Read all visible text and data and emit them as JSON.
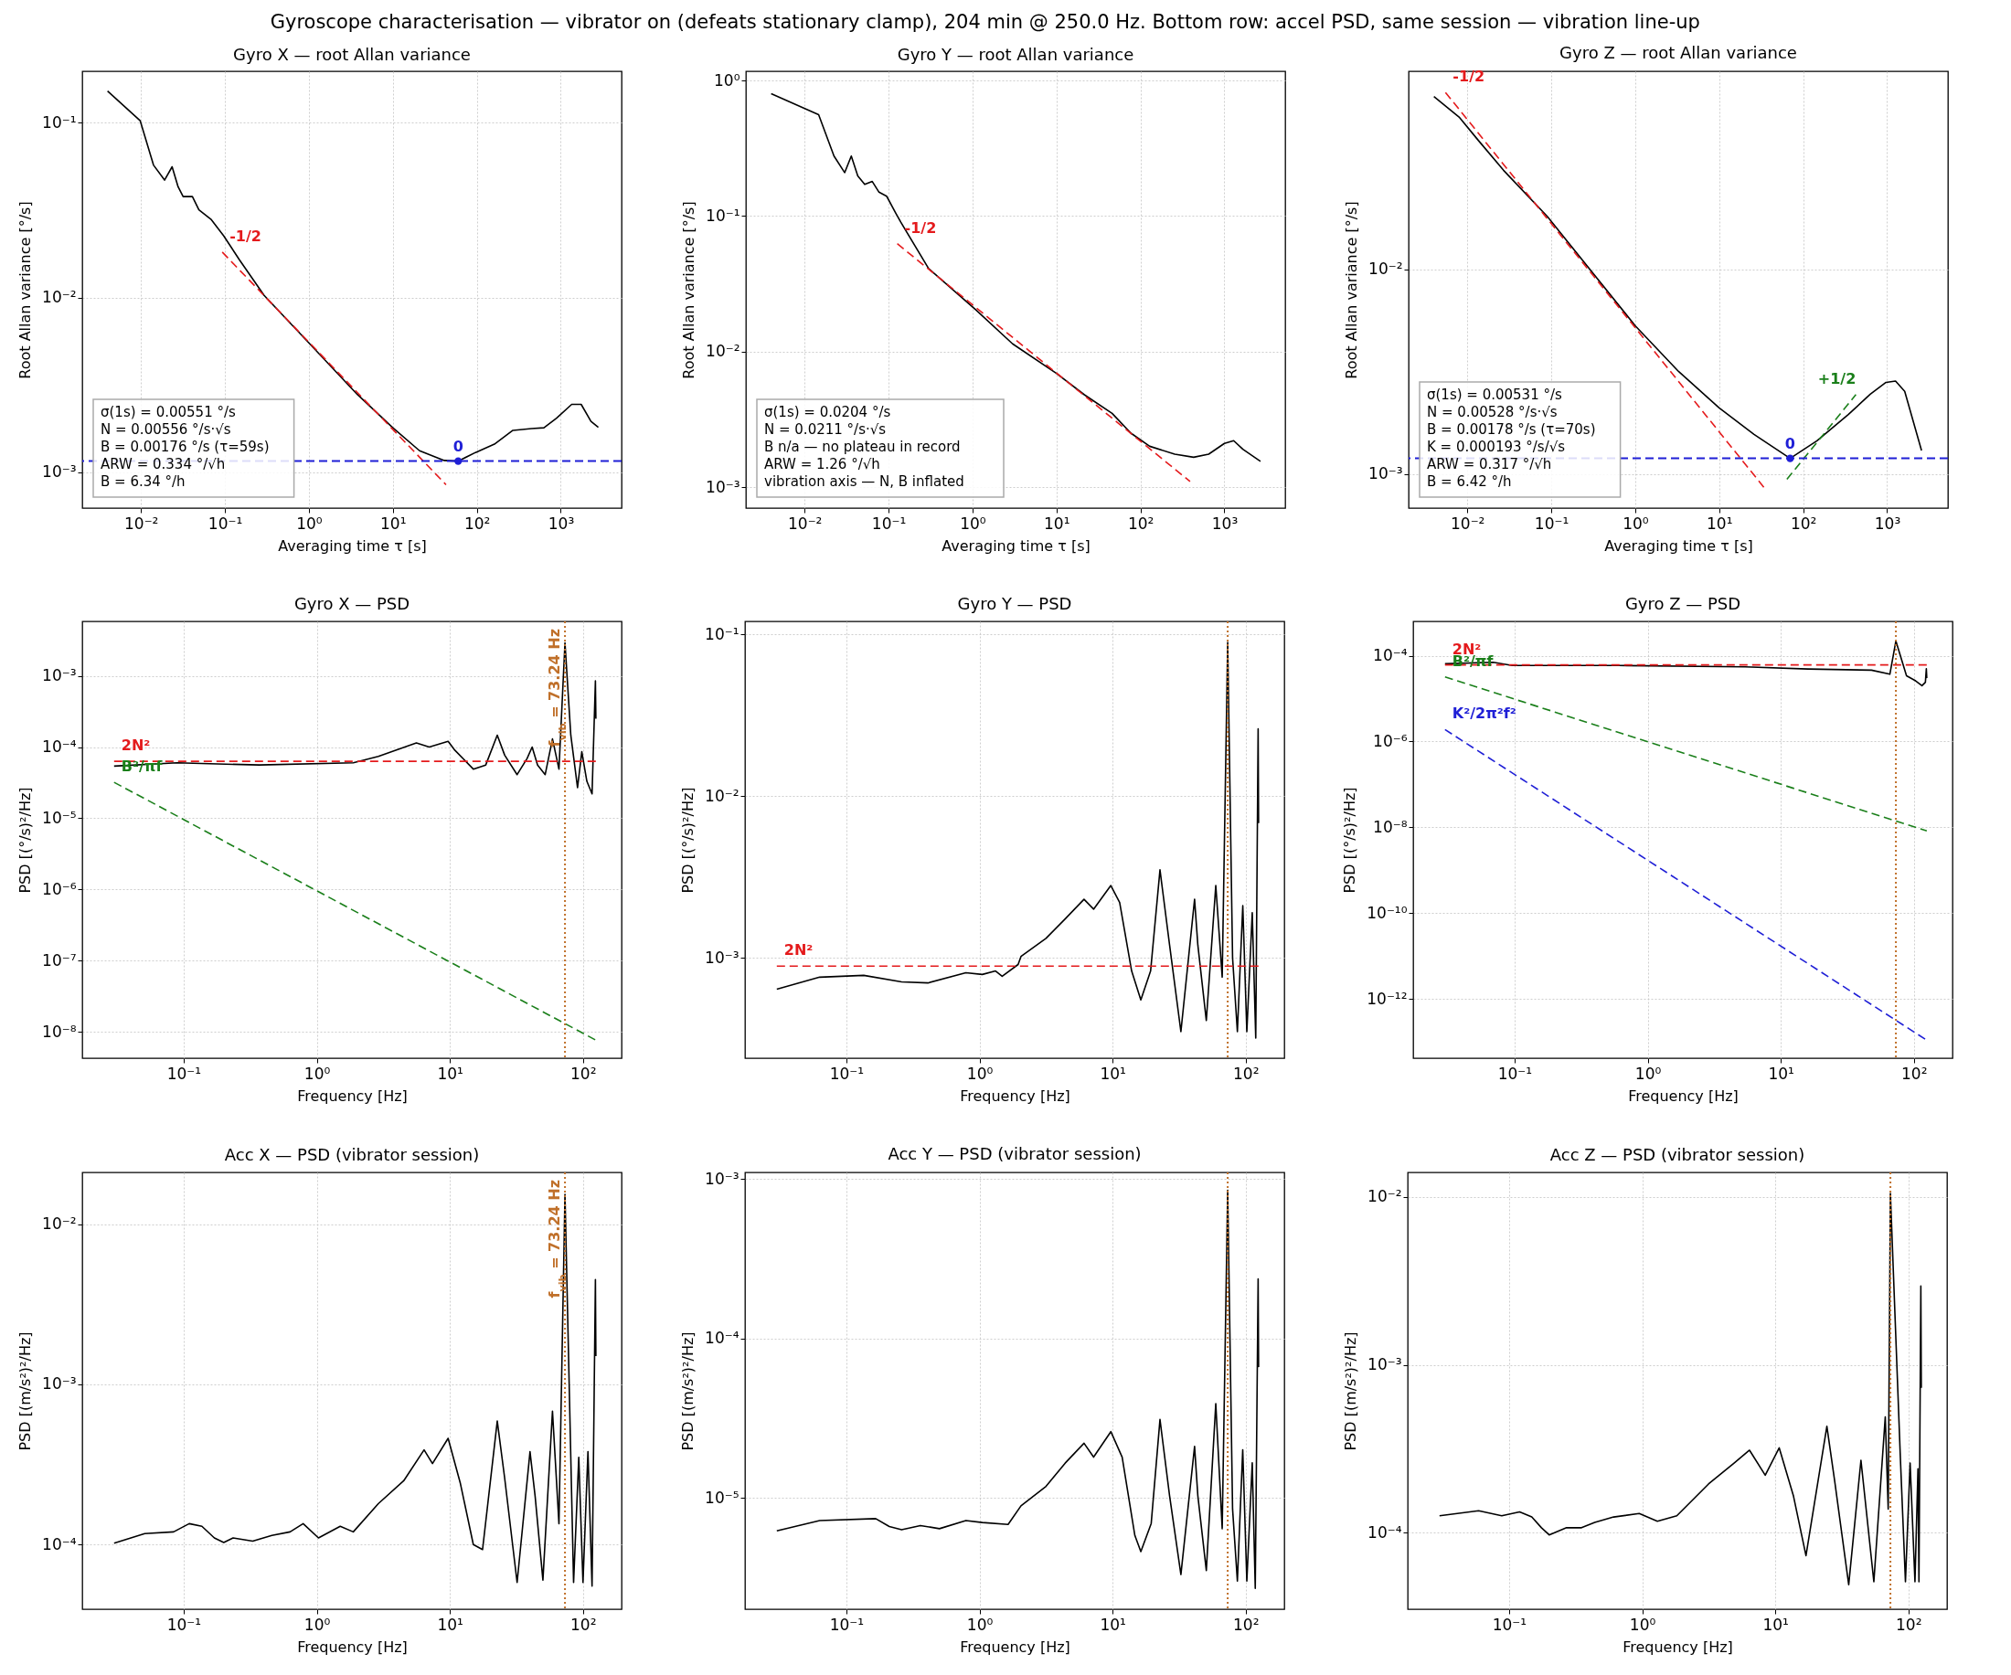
{
  "chart_data": [
    {
      "type": "other",
      "title": "Gyroscope characterisation — vibrator on (defeats stationary clamp), 204 min @ 250.0 Hz. Bottom row: accel PSD, same session — vibration line-up"
    },
    {
      "type": "line",
      "title": "Gyro X — root Allan variance",
      "xlabel": "Averaging time τ [s]",
      "ylabel": "Root Allan variance [°/s]",
      "log": "xy",
      "grid": true,
      "xlim": [
        0.002,
        5300
      ],
      "ylim": [
        0.000625,
        0.197
      ],
      "xticks": [
        {
          "value": 0.01,
          "label": "10⁻²"
        },
        {
          "value": 0.1,
          "label": "10⁻¹"
        },
        {
          "value": 1,
          "label": "10⁰"
        },
        {
          "value": 10,
          "label": "10¹"
        },
        {
          "value": 100,
          "label": "10²"
        },
        {
          "value": 1000,
          "label": "10³"
        }
      ],
      "yticks": [
        {
          "value": 0.001,
          "label": "10⁻³"
        },
        {
          "value": 0.01,
          "label": "10⁻²"
        },
        {
          "value": 0.1,
          "label": "10⁻¹"
        }
      ],
      "series": [
        {
          "color": "#000000",
          "x": [
            0.004,
            0.0098,
            0.0141,
            0.0191,
            0.0235,
            0.0277,
            0.0318,
            0.041,
            0.049,
            0.069,
            0.097,
            0.148,
            0.293,
            1,
            3.78,
            10,
            20.8,
            41,
            60,
            96.6,
            162,
            269,
            450,
            630,
            890,
            1350,
            1750,
            2290,
            2800
          ],
          "values": [
            0.152,
            0.1026,
            0.0573,
            0.047,
            0.056,
            0.043,
            0.0378,
            0.0378,
            0.0318,
            0.0279,
            0.0225,
            0.0165,
            0.0103,
            0.0055,
            0.00279,
            0.0018,
            0.00133,
            0.00117,
            0.00116,
            0.0013,
            0.00145,
            0.00174,
            0.00178,
            0.0018,
            0.00204,
            0.00245,
            0.00245,
            0.00196,
            0.00181
          ]
        },
        {
          "name": "-1/2",
          "color": "#e41a1c",
          "line_style": "dashed",
          "x": [
            0.093,
            43
          ],
          "values": [
            0.0182,
            0.00085
          ]
        },
        {
          "name": "0",
          "type": "scatter",
          "marker": "circle",
          "color": "#1f1fd6",
          "x": [
            60
          ],
          "values": [
            0.00116
          ]
        }
      ],
      "ref_lines": [
        {
          "axis": "y",
          "value": 0.00116,
          "color": "#1f1fd6",
          "line_style": "dashed"
        }
      ],
      "annotations": [
        "σ(1s) = 0.00551 °/s",
        "N = 0.00556 °/s·√s",
        "B = 0.00176 °/s  (τ=59s)",
        "ARW = 0.334 °/√h",
        "B = 6.34 °/h"
      ]
    },
    {
      "type": "line",
      "title": "Gyro Y — root Allan variance",
      "xlabel": "Averaging time τ [s]",
      "ylabel": "Root Allan variance [°/s]",
      "log": "xy",
      "grid": true,
      "xlim": [
        0.002,
        5300
      ],
      "ylim": [
        0.0007,
        1.17
      ],
      "xticks": [
        {
          "value": 0.01,
          "label": "10⁻²"
        },
        {
          "value": 0.1,
          "label": "10⁻¹"
        },
        {
          "value": 1,
          "label": "10⁰"
        },
        {
          "value": 10,
          "label": "10¹"
        },
        {
          "value": 100,
          "label": "10²"
        },
        {
          "value": 1000,
          "label": "10³"
        }
      ],
      "yticks": [
        {
          "value": 0.001,
          "label": "10⁻³"
        },
        {
          "value": 0.01,
          "label": "10⁻²"
        },
        {
          "value": 0.1,
          "label": "10⁻¹"
        },
        {
          "value": 1,
          "label": "10⁰"
        }
      ],
      "series": [
        {
          "color": "#000000",
          "x": [
            0.004,
            0.0147,
            0.0224,
            0.03,
            0.036,
            0.043,
            0.052,
            0.064,
            0.077,
            0.095,
            0.122,
            0.14,
            0.3,
            1.09,
            3,
            10,
            21.5,
            46,
            77,
            129,
            256,
            430,
            650,
            1000,
            1290,
            1660,
            2690
          ],
          "values": [
            0.8,
            0.56,
            0.277,
            0.209,
            0.277,
            0.198,
            0.171,
            0.18,
            0.15,
            0.14,
            0.105,
            0.09,
            0.041,
            0.0204,
            0.0114,
            0.0069,
            0.0048,
            0.0035,
            0.0025,
            0.002,
            0.00175,
            0.00166,
            0.00175,
            0.0021,
            0.0022,
            0.0019,
            0.00155
          ]
        },
        {
          "name": "-1/2",
          "color": "#e41a1c",
          "line_style": "dashed",
          "x": [
            0.127,
            390
          ],
          "values": [
            0.0625,
            0.0011
          ]
        }
      ],
      "annotations": [
        "σ(1s) = 0.0204 °/s",
        "N = 0.0211 °/s·√s",
        "B n/a — no plateau in record",
        "ARW = 1.26 °/√h",
        "vibration axis — N, B inflated"
      ]
    },
    {
      "type": "line",
      "title": "Gyro Z — root Allan variance",
      "xlabel": "Averaging time τ [s]",
      "ylabel": "Root Allan variance [°/s]",
      "log": "xy",
      "grid": true,
      "xlim": [
        0.002,
        5300
      ],
      "ylim": [
        0.00068,
        0.093
      ],
      "xticks": [
        {
          "value": 0.01,
          "label": "10⁻²"
        },
        {
          "value": 0.1,
          "label": "10⁻¹"
        },
        {
          "value": 1,
          "label": "10⁰"
        },
        {
          "value": 10,
          "label": "10¹"
        },
        {
          "value": 100,
          "label": "10²"
        },
        {
          "value": 1000,
          "label": "10³"
        }
      ],
      "yticks": [
        {
          "value": 0.001,
          "label": "10⁻³"
        },
        {
          "value": 0.01,
          "label": "10⁻²"
        }
      ],
      "series": [
        {
          "color": "#000000",
          "x": [
            0.004,
            0.0081,
            0.0136,
            0.027,
            0.09,
            1,
            3.3,
            10,
            26,
            70,
            146,
            345,
            630,
            970,
            1260,
            1620,
            2570
          ],
          "values": [
            0.07,
            0.0552,
            0.0426,
            0.0305,
            0.0181,
            0.0053,
            0.00316,
            0.0021,
            0.00156,
            0.00119,
            0.00145,
            0.00195,
            0.00245,
            0.0028,
            0.00284,
            0.00253,
            0.0013
          ]
        },
        {
          "name": "-1/2",
          "color": "#e41a1c",
          "line_style": "dashed",
          "x": [
            0.0055,
            34
          ],
          "values": [
            0.0733,
            0.00086
          ]
        },
        {
          "name": "+1/2",
          "color": "#1a7f1a",
          "line_style": "dashed",
          "x": [
            64,
            425
          ],
          "values": [
            0.00094,
            0.00244
          ]
        },
        {
          "name": "0",
          "type": "scatter",
          "marker": "circle",
          "color": "#1f1fd6",
          "x": [
            70
          ],
          "values": [
            0.00119
          ]
        }
      ],
      "ref_lines": [
        {
          "axis": "y",
          "value": 0.00119,
          "color": "#1f1fd6",
          "line_style": "dashed"
        }
      ],
      "annotations": [
        "σ(1s) = 0.00531 °/s",
        "N = 0.00528 °/s·√s",
        "B = 0.00178 °/s  (τ=70s)",
        "K = 0.000193 °/s/√s",
        "ARW = 0.317 °/√h",
        "B = 6.42 °/h"
      ]
    },
    {
      "type": "line",
      "title": "Gyro X — PSD",
      "xlabel": "Frequency [Hz]",
      "ylabel": "PSD [(°/s)²/Hz]",
      "log": "xy",
      "grid": true,
      "xlim": [
        0.0173,
        195
      ],
      "ylim": [
        4.3e-09,
        0.0058
      ],
      "xticks": [
        {
          "value": 0.1,
          "label": "10⁻¹"
        },
        {
          "value": 1,
          "label": "10⁰"
        },
        {
          "value": 10,
          "label": "10¹"
        },
        {
          "value": 100,
          "label": "10²"
        }
      ],
      "yticks": [
        {
          "value": 1e-08,
          "label": "10⁻⁸"
        },
        {
          "value": 1e-07,
          "label": "10⁻⁷"
        },
        {
          "value": 1e-06,
          "label": "10⁻⁶"
        },
        {
          "value": 1e-05,
          "label": "10⁻⁵"
        },
        {
          "value": 0.0001,
          "label": "10⁻⁴"
        },
        {
          "value": 0.001,
          "label": "10⁻³"
        }
      ],
      "series": [
        {
          "color": "#000000",
          "x": [
            0.03,
            0.089,
            0.37,
            1.88,
            2.9,
            5.6,
            7,
            9.7,
            10.8,
            15,
            18.6,
            22.7,
            25.8,
            32,
            38,
            41.5,
            45.6,
            52,
            59,
            66,
            73.24,
            81,
            91,
            98,
            107,
            117,
            124,
            125
          ],
          "values": [
            5.4e-05,
            6e-05,
            5.6e-05,
            6e-05,
            7.4e-05,
            0.000114,
            0.0001,
            0.00012,
            9.2e-05,
            4.9e-05,
            5.6e-05,
            0.000147,
            7.7e-05,
            4.1e-05,
            6.9e-05,
            0.0001,
            5.6e-05,
            4.1e-05,
            0.00013,
            4.9e-05,
            0.0029,
            0.000147,
            2.7e-05,
            8.6e-05,
            3.3e-05,
            2.2e-05,
            0.00085,
            0.00025
          ]
        },
        {
          "name": "2N²",
          "color": "#e41a1c",
          "line_style": "dashed",
          "x": [
            0.03,
            125
          ],
          "values": [
            6.3e-05,
            6.3e-05
          ]
        },
        {
          "name": "B²/πf",
          "color": "#1a7f1a",
          "line_style": "dashed",
          "x": [
            0.03,
            125
          ],
          "values": [
            3.2e-05,
            7.7e-09
          ]
        }
      ],
      "ref_lines": [
        {
          "axis": "x",
          "value": 73.24,
          "color": "#c0702a",
          "line_style": "dotted",
          "label": "f$_{vib}$ = 73.24 Hz"
        }
      ]
    },
    {
      "type": "line",
      "title": "Gyro Y — PSD",
      "xlabel": "Frequency [Hz]",
      "ylabel": "PSD [(°/s)²/Hz]",
      "log": "xy",
      "grid": true,
      "xlim": [
        0.0173,
        195
      ],
      "ylim": [
        0.00024,
        0.12
      ],
      "xticks": [
        {
          "value": 0.1,
          "label": "10⁻¹"
        },
        {
          "value": 1,
          "label": "10⁰"
        },
        {
          "value": 10,
          "label": "10¹"
        },
        {
          "value": 100,
          "label": "10²"
        }
      ],
      "yticks": [
        {
          "value": 0.001,
          "label": "10⁻³"
        },
        {
          "value": 0.01,
          "label": "10⁻²"
        },
        {
          "value": 0.1,
          "label": "10⁻¹"
        }
      ],
      "series": [
        {
          "color": "#000000",
          "x": [
            0.03,
            0.063,
            0.135,
            0.26,
            0.41,
            0.79,
            1.05,
            1.32,
            1.48,
            1.95,
            2.05,
            3.16,
            4.4,
            6.1,
            7.2,
            9.7,
            11.3,
            13.9,
            16.3,
            19.3,
            22.7,
            26.8,
            32.6,
            41.3,
            43.7,
            50.6,
            59.6,
            66.6,
            73.24,
            79.7,
            86.6,
            95.1,
            102,
            112,
            119,
            124,
            125
          ],
          "values": [
            0.00064,
            0.00076,
            0.00078,
            0.00071,
            0.0007,
            0.00081,
            0.00079,
            0.00083,
            0.00077,
            0.00091,
            0.00102,
            0.00132,
            0.00174,
            0.0023,
            0.002,
            0.0028,
            0.0022,
            0.00083,
            0.00055,
            0.00083,
            0.0035,
            0.0012,
            0.00035,
            0.0023,
            0.0012,
            0.00041,
            0.0028,
            0.00076,
            0.089,
            0.001,
            0.00035,
            0.0021,
            0.00035,
            0.0019,
            0.00032,
            0.026,
            0.0068
          ]
        },
        {
          "name": "2N²",
          "color": "#e41a1c",
          "line_style": "dashed",
          "x": [
            0.03,
            125
          ],
          "values": [
            0.00089,
            0.00089
          ]
        }
      ],
      "ref_lines": [
        {
          "axis": "x",
          "value": 73.24,
          "color": "#c0702a",
          "line_style": "dotted"
        }
      ]
    },
    {
      "type": "line",
      "title": "Gyro Z — PSD",
      "xlabel": "Frequency [Hz]",
      "ylabel": "PSD [(°/s)²/Hz]",
      "log": "xy",
      "grid": true,
      "xlim": [
        0.0173,
        195
      ],
      "ylim": [
        4.2e-14,
        0.00063
      ],
      "xticks": [
        {
          "value": 0.1,
          "label": "10⁻¹"
        },
        {
          "value": 1,
          "label": "10⁰"
        },
        {
          "value": 10,
          "label": "10¹"
        },
        {
          "value": 100,
          "label": "10²"
        }
      ],
      "yticks": [
        {
          "value": 1e-12,
          "label": "10⁻¹²"
        },
        {
          "value": 1e-10,
          "label": "10⁻¹⁰"
        },
        {
          "value": 1e-08,
          "label": "10⁻⁸"
        },
        {
          "value": 1e-06,
          "label": "10⁻⁶"
        },
        {
          "value": 0.0001,
          "label": "10⁻⁴"
        }
      ],
      "series": [
        {
          "color": "#000000",
          "x": [
            0.03,
            0.069,
            0.096,
            0.61,
            5.4,
            16,
            48,
            66,
            73.24,
            88,
            103,
            115,
            122,
            124,
            125
          ],
          "values": [
            6.5e-05,
            7e-05,
            5.9e-05,
            5.9e-05,
            5.5e-05,
            4.9e-05,
            4.6e-05,
            3.7e-05,
            0.00022,
            3.4e-05,
            2.6e-05,
            2e-05,
            2.4e-05,
            5e-05,
            3e-05
          ]
        },
        {
          "name": "2N²",
          "color": "#e41a1c",
          "line_style": "dashed",
          "x": [
            0.03,
            125
          ],
          "values": [
            6.1e-05,
            6.1e-05
          ]
        },
        {
          "name": "B²/πf",
          "color": "#1a7f1a",
          "line_style": "dashed",
          "x": [
            0.03,
            125
          ],
          "values": [
            3.2e-05,
            8.3e-09
          ]
        },
        {
          "name": "K²/2π²f²",
          "color": "#1f1fd6",
          "line_style": "dashed",
          "x": [
            0.03,
            125
          ],
          "values": [
            1.9e-06,
            1.1e-13
          ]
        }
      ],
      "ref_lines": [
        {
          "axis": "x",
          "value": 73.24,
          "color": "#c0702a",
          "line_style": "dotted"
        }
      ]
    },
    {
      "type": "line",
      "title": "Acc X — PSD (vibrator session)",
      "xlabel": "Frequency [Hz]",
      "ylabel": "PSD [(m/s²)²/Hz]",
      "log": "xy",
      "grid": true,
      "xlim": [
        0.0173,
        195
      ],
      "ylim": [
        3.95e-05,
        0.021
      ],
      "xticks": [
        {
          "value": 0.1,
          "label": "10⁻¹"
        },
        {
          "value": 1,
          "label": "10⁰"
        },
        {
          "value": 10,
          "label": "10¹"
        },
        {
          "value": 100,
          "label": "10²"
        }
      ],
      "yticks": [
        {
          "value": 0.0001,
          "label": "10⁻⁴"
        },
        {
          "value": 0.001,
          "label": "10⁻³"
        },
        {
          "value": 0.01,
          "label": "10⁻²"
        }
      ],
      "series": [
        {
          "color": "#000000",
          "x": [
            0.03,
            0.051,
            0.084,
            0.11,
            0.137,
            0.17,
            0.2,
            0.235,
            0.33,
            0.46,
            0.63,
            0.79,
            1.03,
            1.5,
            1.88,
            2.9,
            4.5,
            6.4,
            7.4,
            9.7,
            12,
            15,
            17.6,
            22.7,
            25.8,
            32,
            40,
            43.7,
            50,
            59,
            66,
            73.24,
            81,
            85,
            93,
            100,
            109,
            117,
            124,
            125
          ],
          "values": [
            0.000102,
            0.000117,
            0.00012,
            0.000135,
            0.00013,
            0.00011,
            0.000103,
            0.00011,
            0.000105,
            0.000114,
            0.00012,
            0.000135,
            0.00011,
            0.00013,
            0.00012,
            0.00018,
            0.00025,
            0.00039,
            0.00032,
            0.00046,
            0.00024,
            0.0001,
            9.3e-05,
            0.00059,
            0.00026,
            5.8e-05,
            0.00038,
            0.0002,
            6e-05,
            0.00068,
            0.000135,
            0.0153,
            0.00035,
            5.8e-05,
            0.00035,
            5.8e-05,
            0.00038,
            5.5e-05,
            0.0045,
            0.0015
          ]
        }
      ],
      "ref_lines": [
        {
          "axis": "x",
          "value": 73.24,
          "color": "#c0702a",
          "line_style": "dotted",
          "label": "f$_{vib}$ = 73.24 Hz"
        }
      ]
    },
    {
      "type": "line",
      "title": "Acc Y — PSD (vibrator session)",
      "xlabel": "Frequency [Hz]",
      "ylabel": "PSD [(m/s²)²/Hz]",
      "log": "xy",
      "grid": true,
      "xlim": [
        0.0173,
        195
      ],
      "ylim": [
        2e-06,
        0.0011
      ],
      "xticks": [
        {
          "value": 0.1,
          "label": "10⁻¹"
        },
        {
          "value": 1,
          "label": "10⁰"
        },
        {
          "value": 10,
          "label": "10¹"
        },
        {
          "value": 100,
          "label": "10²"
        }
      ],
      "yticks": [
        {
          "value": 1e-05,
          "label": "10⁻⁵"
        },
        {
          "value": 0.0001,
          "label": "10⁻⁴"
        },
        {
          "value": 0.001,
          "label": "10⁻³"
        }
      ],
      "series": [
        {
          "color": "#000000",
          "x": [
            0.03,
            0.063,
            0.166,
            0.21,
            0.26,
            0.36,
            0.5,
            0.79,
            1.05,
            1.64,
            2.05,
            3.16,
            4.4,
            6.1,
            7.2,
            9.7,
            11.8,
            14.7,
            16.3,
            19.5,
            22.7,
            26.8,
            32.6,
            41.3,
            43.7,
            50.6,
            59.6,
            66.6,
            73.24,
            79.7,
            86.6,
            95,
            102,
            112,
            118,
            124,
            125
          ],
          "values": [
            6.2e-06,
            7.2e-06,
            7.4e-06,
            6.6e-06,
            6.3e-06,
            6.7e-06,
            6.4e-06,
            7.2e-06,
            7e-06,
            6.8e-06,
            8.9e-06,
            1.18e-05,
            1.65e-05,
            2.2e-05,
            1.8e-05,
            2.6e-05,
            1.8e-05,
            5.8e-06,
            4.6e-06,
            6.9e-06,
            3.1e-05,
            1.03e-05,
            3.3e-06,
            2.1e-05,
            1.03e-05,
            3.5e-06,
            3.9e-05,
            6.4e-06,
            0.00085,
            8.5e-06,
            3e-06,
            2e-05,
            3e-06,
            1.66e-05,
            2.7e-06,
            0.000236,
            6.6e-05
          ]
        }
      ],
      "ref_lines": [
        {
          "axis": "x",
          "value": 73.24,
          "color": "#c0702a",
          "line_style": "dotted"
        }
      ]
    },
    {
      "type": "line",
      "title": "Acc Z — PSD (vibrator session)",
      "xlabel": "Frequency [Hz]",
      "ylabel": "PSD [(m/s²)²/Hz]",
      "log": "xy",
      "grid": true,
      "xlim": [
        0.0173,
        195
      ],
      "ylim": [
        3.5e-05,
        0.014
      ],
      "xticks": [
        {
          "value": 0.1,
          "label": "10⁻¹"
        },
        {
          "value": 1,
          "label": "10⁰"
        },
        {
          "value": 10,
          "label": "10¹"
        },
        {
          "value": 100,
          "label": "10²"
        }
      ],
      "yticks": [
        {
          "value": 0.0001,
          "label": "10⁻⁴"
        },
        {
          "value": 0.001,
          "label": "10⁻³"
        },
        {
          "value": 0.01,
          "label": "10⁻²"
        }
      ],
      "series": [
        {
          "color": "#000000",
          "x": [
            0.03,
            0.059,
            0.088,
            0.12,
            0.148,
            0.175,
            0.2,
            0.27,
            0.35,
            0.44,
            0.61,
            0.95,
            1.3,
            1.82,
            3.15,
            4.9,
            6.4,
            8.4,
            10.7,
            13.7,
            17,
            24.4,
            28,
            35.6,
            44,
            55,
            67,
            70.5,
            73.24,
            87,
            95,
            103,
            112,
            118,
            120,
            124,
            125
          ],
          "values": [
            0.000126,
            0.000135,
            0.000126,
            0.000133,
            0.000124,
            0.000107,
            9.7e-05,
            0.000107,
            0.000107,
            0.000115,
            0.000124,
            0.00013,
            0.000117,
            0.000126,
            0.000195,
            0.00026,
            0.00031,
            0.00022,
            0.00032,
            0.000165,
            7.3e-05,
            0.00043,
            0.0002,
            4.9e-05,
            0.00027,
            5.1e-05,
            0.00049,
            0.000138,
            0.0105,
            0.00028,
            5.1e-05,
            0.00026,
            5.1e-05,
            0.00024,
            5.1e-05,
            0.00295,
            0.00073
          ]
        }
      ],
      "ref_lines": [
        {
          "axis": "x",
          "value": 73.24,
          "color": "#c0702a",
          "line_style": "dotted"
        }
      ]
    }
  ]
}
